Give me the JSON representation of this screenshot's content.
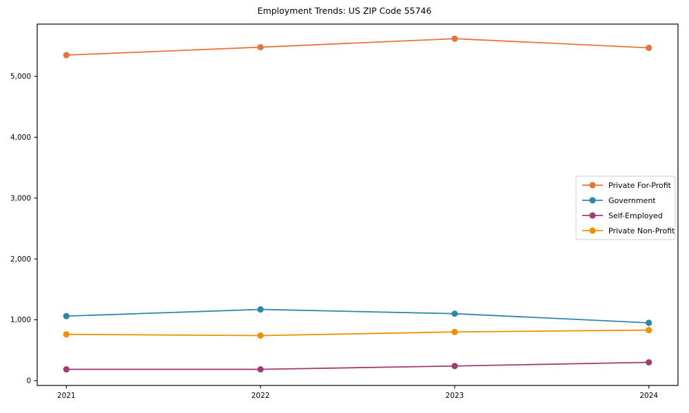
{
  "chart_data": {
    "type": "line",
    "title": "Employment Trends: US ZIP Code 55746",
    "x": [
      2021,
      2022,
      2023,
      2024
    ],
    "x_tick_labels": [
      "2021",
      "2022",
      "2023",
      "2024"
    ],
    "series": [
      {
        "name": "Private For-Profit",
        "color": "#e8743b",
        "values": [
          5350,
          5480,
          5620,
          5470
        ]
      },
      {
        "name": "Government",
        "color": "#2e86ab",
        "values": [
          1060,
          1170,
          1100,
          950
        ]
      },
      {
        "name": "Self-Employed",
        "color": "#a23b72",
        "values": [
          185,
          185,
          240,
          300
        ]
      },
      {
        "name": "Private Non-Profit",
        "color": "#f18f01",
        "values": [
          760,
          740,
          800,
          830
        ]
      }
    ],
    "xlabel": "",
    "ylabel": "",
    "xlim": [
      2020.85,
      2024.15
    ],
    "ylim": [
      -80,
      5860
    ],
    "yticks": [
      0,
      1000,
      2000,
      3000,
      4000,
      5000
    ],
    "ytick_labels": [
      "0",
      "1,000",
      "2,000",
      "3,000",
      "4,000",
      "5,000"
    ],
    "grid": false,
    "legend_position": "center right",
    "marker": "circle"
  }
}
